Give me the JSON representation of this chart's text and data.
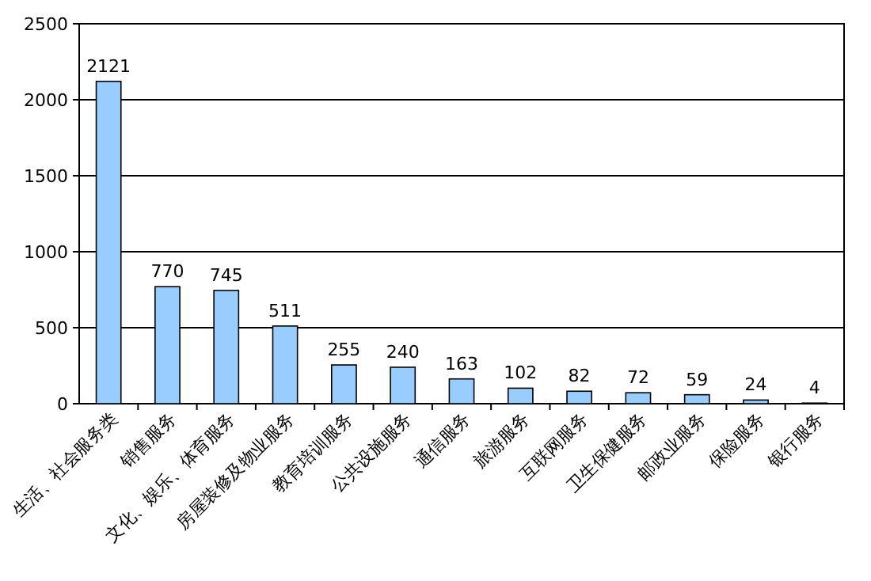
{
  "chart_data": {
    "type": "bar",
    "categories": [
      "生活、社会服务类",
      "销售服务",
      "文化、娱乐、体育服务",
      "房屋装修及物业服务",
      "教育培训服务",
      "公共设施服务",
      "通信服务",
      "旅游服务",
      "互联网服务",
      "卫生保健服务",
      "邮政业服务",
      "保险服务",
      "银行服务"
    ],
    "values": [
      2121,
      770,
      745,
      511,
      255,
      240,
      163,
      102,
      82,
      72,
      59,
      24,
      4
    ],
    "color": "#99ccff",
    "ylim": [
      0,
      2500
    ],
    "yticks": [
      0,
      500,
      1000,
      1500,
      2000,
      2500
    ],
    "grid": "y",
    "data_labels": true
  }
}
